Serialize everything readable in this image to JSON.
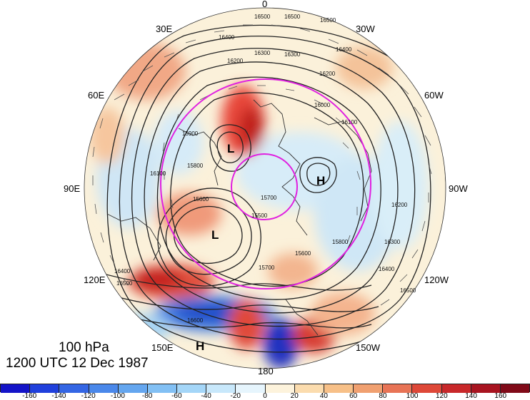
{
  "map": {
    "level_label": "100 hPa",
    "time_label": "1200 UTC 12 Dec 1987",
    "longitude_labels": [
      "0",
      "30W",
      "60W",
      "90W",
      "120W",
      "150W",
      "180",
      "150E",
      "120E",
      "90E",
      "60E",
      "30E"
    ],
    "contour_labels": [
      "16500",
      "16500",
      "16500",
      "16400",
      "16300",
      "16300",
      "16400",
      "16200",
      "16200",
      "16100",
      "16000",
      "15900",
      "15800",
      "15700",
      "15600",
      "15500",
      "16100",
      "16200",
      "16300",
      "16400",
      "16500",
      "16600",
      "16500",
      "16400",
      "15700",
      "15600",
      "15800"
    ],
    "pressure_centers": [
      {
        "label": "L"
      },
      {
        "label": "L"
      },
      {
        "label": "H"
      },
      {
        "label": "H"
      }
    ]
  },
  "colorbar": {
    "ticks": [
      "-160",
      "-140",
      "-120",
      "-100",
      "-80",
      "-60",
      "-40",
      "-20",
      "0",
      "20",
      "40",
      "60",
      "80",
      "100",
      "120",
      "140",
      "160"
    ],
    "colors": [
      "#1414c8",
      "#2040dc",
      "#3466e4",
      "#4a88ea",
      "#64a6ef",
      "#82c0f4",
      "#a4d6f8",
      "#c8e8fb",
      "#e6f5fd",
      "#fdf3dc",
      "#fbdcae",
      "#f7c088",
      "#f0a070",
      "#e87456",
      "#de4838",
      "#c8282a",
      "#a81420",
      "#800a18"
    ]
  }
}
